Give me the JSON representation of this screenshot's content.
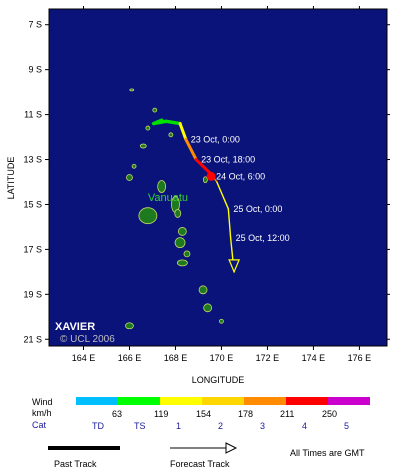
{
  "storm": {
    "name": "XAVIER",
    "copyright": "© UCL 2006"
  },
  "axes": {
    "xlabel": "LONGITUDE",
    "ylabel": "LATITUDE",
    "lon_ticks": [
      "164 E",
      "166 E",
      "168 E",
      "170 E",
      "172 E",
      "174 E",
      "176 E"
    ],
    "lat_ticks": [
      "7 S",
      "9 S",
      "11 S",
      "13 S",
      "15 S",
      "17 S",
      "19 S",
      "21 S"
    ],
    "lon_range": [
      162.5,
      177.2
    ],
    "lat_range": [
      6.3,
      21.3
    ]
  },
  "place_label": "Vanuatu",
  "track": {
    "past": [
      {
        "lon": 167.4,
        "lat": 11.25
      },
      {
        "lon": 167.05,
        "lat": 11.4
      },
      {
        "lon": 167.6,
        "lat": 11.3
      },
      {
        "lon": 168.2,
        "lat": 11.4
      }
    ],
    "forecast": [
      {
        "lon": 168.2,
        "lat": 11.4,
        "color": "#00e000"
      },
      {
        "lon": 168.45,
        "lat": 12.1,
        "color": "#ffff00"
      },
      {
        "lon": 168.9,
        "lat": 13.0,
        "color": "#ff8c00"
      },
      {
        "lon": 169.5,
        "lat": 13.6,
        "color": "#ff0000"
      },
      {
        "lon": 169.8,
        "lat": 14.0,
        "color": "#ff8c00"
      },
      {
        "lon": 170.3,
        "lat": 15.2,
        "color": "#ffff00"
      },
      {
        "lon": 170.4,
        "lat": 16.5,
        "color": "#ffff00"
      },
      {
        "lon": 170.55,
        "lat": 18.0,
        "color": "#ffff00"
      }
    ],
    "current_position": {
      "lon": 169.55,
      "lat": 13.75
    },
    "time_labels": [
      {
        "text": "23 Oct, 0:00",
        "lon": 168.45,
        "lat": 12.1
      },
      {
        "text": "23 Oct, 18:00",
        "lon": 168.9,
        "lat": 13.0
      },
      {
        "text": "24 Oct, 6:00",
        "lon": 169.55,
        "lat": 13.75
      },
      {
        "text": "25 Oct, 0:00",
        "lon": 170.3,
        "lat": 15.2
      },
      {
        "text": "25 Oct, 12:00",
        "lon": 170.4,
        "lat": 16.5
      }
    ]
  },
  "legend": {
    "wind_label": "Wind",
    "unit_label": "km/h",
    "cat_label": "Cat",
    "colors": [
      "#00bfff",
      "#00ff00",
      "#ffff00",
      "#ffd700",
      "#ff8c00",
      "#ff0000",
      "#cc00cc"
    ],
    "wind_values": [
      "63",
      "119",
      "154",
      "178",
      "211",
      "250"
    ],
    "cat_values": [
      "TD",
      "TS",
      "1",
      "2",
      "3",
      "4",
      "5"
    ],
    "past_track_label": "Past Track",
    "forecast_track_label": "Forecast Track",
    "gmt_note": "All Times are GMT"
  },
  "colors": {
    "ocean": "#0a137a",
    "land": "#1e7a1e",
    "land_edge": "#c8d86a",
    "frame": "#000000"
  }
}
